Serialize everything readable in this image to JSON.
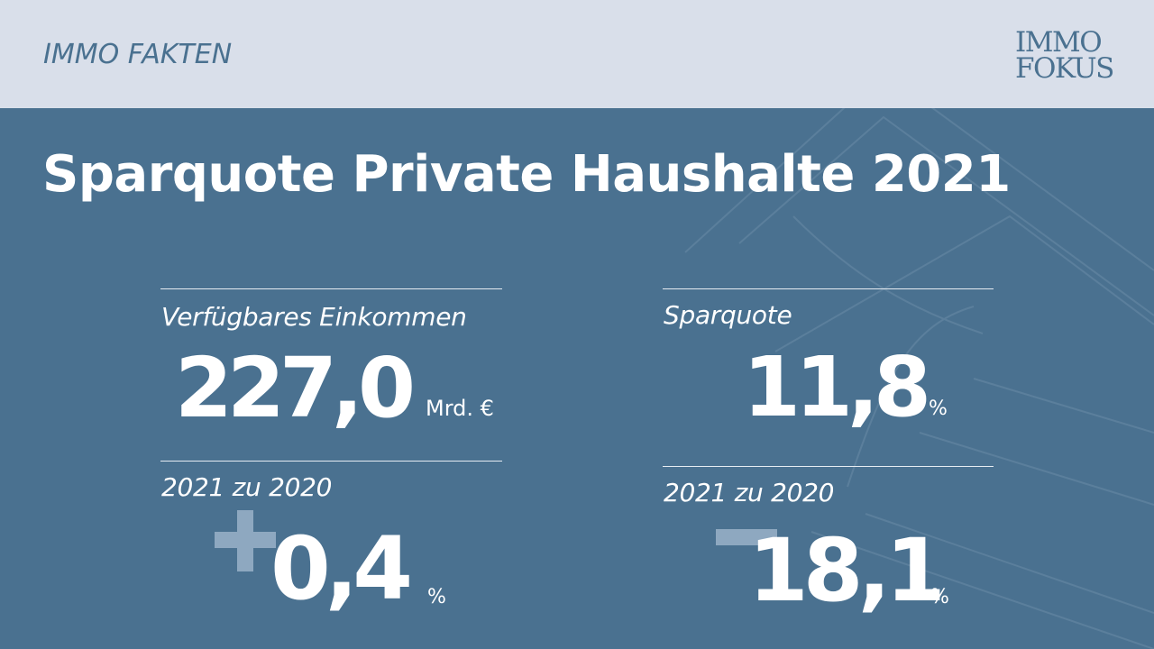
{
  "header": {
    "section": "IMMO FAKTEN",
    "logo_line1": "IMMO",
    "logo_line2": "FOKUS"
  },
  "title": "Sparquote Private Haushalte 2021",
  "left": {
    "label": "Verfügbares Einkommen",
    "value": "227,0",
    "unit": "Mrd. €",
    "change_label": "2021 zu 2020",
    "change_sign": "+",
    "change_value": "0,4",
    "change_unit": "%"
  },
  "right": {
    "label": "Sparquote",
    "value": "11,8",
    "unit": "%",
    "change_label": "2021 zu 2020",
    "change_sign": "-",
    "change_value": "18,1",
    "change_unit": "%"
  },
  "colors": {
    "background": "#4a7190",
    "header_bar": "#d9dfea",
    "accent_text": "#4a7190",
    "sign": "#8ea8c0",
    "text": "#ffffff"
  }
}
